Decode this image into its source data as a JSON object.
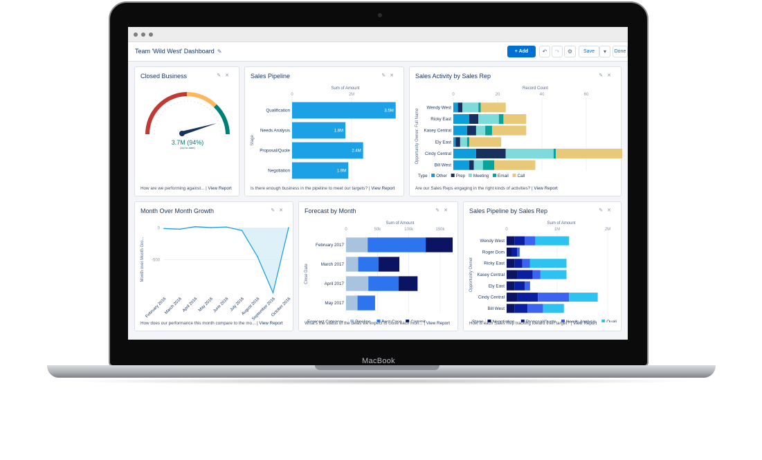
{
  "device": {
    "brand": "MacBook"
  },
  "header": {
    "title": "Team 'Wild West' Dashboard",
    "add_label": "+ Add",
    "save_label": "Save",
    "done_label": "Done"
  },
  "colors": {
    "accent": "#0070d2",
    "bar_blue": "#1da1e6"
  },
  "cards": {
    "closed_business": {
      "title": "Closed Business",
      "value": "3.7M (94%)",
      "sub": "(Up-to-date)",
      "footer": "How are we performing against...",
      "link": "View Report",
      "gauge_fraction": 0.94
    },
    "sales_pipeline": {
      "title": "Sales Pipeline",
      "footer": "Is there enough business in the pipeline to meet our targets?",
      "link": "View Report"
    },
    "sales_activity": {
      "title": "Sales Activity by Sales Rep",
      "footer": "Are our Sales Reps engaging in the right kinds of activities?",
      "link": "View Report"
    },
    "mom_growth": {
      "title": "Month Over Month Growth",
      "footer": "How does our performance this month compare to the mo...",
      "link": "View Report"
    },
    "forecast": {
      "title": "Forecast by Month",
      "footer": "What's the status of the deals we expect to close each mon...",
      "link": "View Report"
    },
    "pipeline_by_rep": {
      "title": "Sales Pipeline by Sales Rep",
      "footer": "How is each Sales Rep tracking toward their target?",
      "link": "View Report"
    }
  },
  "chart_data": [
    {
      "id": "sales_pipeline",
      "type": "bar",
      "orientation": "horizontal",
      "xlabel": "Sum of Amount",
      "ylabel": "Stage",
      "categories": [
        "Qualification",
        "Needs Analysis",
        "Proposal/Quote",
        "Negotiation"
      ],
      "values": [
        3.5,
        1.8,
        2.4,
        1.9
      ],
      "data_labels": [
        "3.5M",
        "1.8M",
        "2.4M",
        "1.9M"
      ],
      "ticks": [
        "0",
        "2M"
      ],
      "xlim": [
        0,
        3.6
      ]
    },
    {
      "id": "sales_activity",
      "type": "bar",
      "orientation": "horizontal",
      "stacked": true,
      "xlabel": "Record Count",
      "ylabel": "Opportunity Owner: Full Name",
      "categories": [
        "Wendy West",
        "Ricky East",
        "Kasey Central",
        "Ely East",
        "Cindy Central",
        "Bill West"
      ],
      "series": [
        {
          "name": "Other",
          "color": "#0d9dda",
          "values": [
            2,
            7,
            6,
            1,
            10,
            7
          ]
        },
        {
          "name": "Prep",
          "color": "#18305e",
          "values": [
            2,
            4,
            4,
            2,
            13,
            2
          ]
        },
        {
          "name": "Meeting",
          "color": "#7edbd9",
          "values": [
            7,
            9,
            4,
            3,
            21,
            4
          ]
        },
        {
          "name": "Email",
          "color": "#09a39a",
          "values": [
            1,
            2,
            3,
            1,
            1,
            5
          ]
        },
        {
          "name": "Call",
          "color": "#e8c97a",
          "values": [
            11,
            10,
            15,
            14,
            30,
            18
          ]
        }
      ],
      "ticks": [
        0,
        20,
        40,
        60
      ],
      "legend_title": "Type",
      "xlim": [
        0,
        72
      ]
    },
    {
      "id": "mom_growth",
      "type": "line",
      "xlabel": "Close Month",
      "ylabel": "Month over Month Gro...",
      "categories": [
        "February 2016",
        "March 2016",
        "April 2016",
        "May 2016",
        "June 2016",
        "July 2016",
        "August 2016",
        "September 2016",
        "October 2016"
      ],
      "values": [
        -10,
        -20,
        20,
        5,
        15,
        -40,
        -450,
        -1020,
        5
      ],
      "yticks": [
        "0",
        "-500"
      ],
      "ylim": [
        -1050,
        60
      ]
    },
    {
      "id": "forecast",
      "type": "bar",
      "orientation": "horizontal",
      "stacked": true,
      "xlabel": "Sum of Amount",
      "ylabel": "Close Date",
      "categories": [
        "February 2017",
        "March 2017",
        "April 2017",
        "May 2017"
      ],
      "series": [
        {
          "name": "Pipeline",
          "color": "#a8c3de",
          "values": [
            32000,
            18000,
            33000,
            17000
          ]
        },
        {
          "name": "Best Case",
          "color": "#2d74ef",
          "values": [
            86000,
            30000,
            45000,
            26000
          ]
        },
        {
          "name": "Commit",
          "color": "#0b1463",
          "values": [
            40000,
            31000,
            28000,
            0
          ]
        }
      ],
      "ticks": [
        "0",
        "50k",
        "100k",
        "150k"
      ],
      "legend_title": "Forecast Category",
      "xlim": [
        0,
        160000
      ]
    },
    {
      "id": "pipeline_by_rep",
      "type": "bar",
      "orientation": "horizontal",
      "stacked": true,
      "xlabel": "Sum of Amount",
      "ylabel": "Opportunity Owner",
      "categories": [
        "Wendy West",
        "Roger Dom",
        "Ricky East",
        "Kasey Central",
        "Ely East",
        "Cindy Central",
        "Bill West"
      ],
      "series": [
        {
          "name": "Negotiation",
          "color": "#0b1463",
          "values": [
            0.15,
            0.1,
            0.15,
            0.2,
            0.15,
            0.2,
            0.15
          ]
        },
        {
          "name": "Proposal/Quote",
          "color": "#0a1fa0",
          "values": [
            0.2,
            0.1,
            0.15,
            0.3,
            0.2,
            0.4,
            0.25
          ]
        },
        {
          "name": "Needs Analysis",
          "color": "#3c63ef",
          "values": [
            0.2,
            0.05,
            0.15,
            0.15,
            0.1,
            0.6,
            0.3
          ]
        },
        {
          "name": "Quali",
          "color": "#2ec2f0",
          "values": [
            0.65,
            0,
            0.7,
            0.5,
            0,
            0.55,
            0.4
          ]
        }
      ],
      "ticks": [
        "0",
        "1M",
        "2M"
      ],
      "legend_title": "Stage",
      "xlim": [
        0,
        2.1
      ]
    }
  ]
}
